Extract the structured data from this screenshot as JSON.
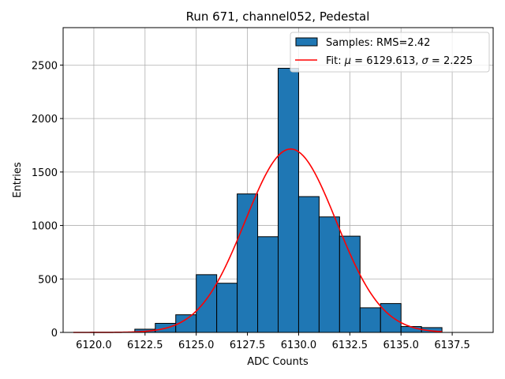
{
  "chart_data": {
    "type": "bar",
    "title": "Run 671, channel052, Pedestal",
    "xlabel": "ADC Counts",
    "ylabel": "Entries",
    "xlim": [
      6118.5,
      6139.5
    ],
    "ylim": [
      0,
      2850
    ],
    "xticks": [
      6120.0,
      6122.5,
      6125.0,
      6127.5,
      6130.0,
      6132.5,
      6135.0,
      6137.5
    ],
    "xtick_labels": [
      "6120.0",
      "6122.5",
      "6125.0",
      "6127.5",
      "6130.0",
      "6132.5",
      "6135.0",
      "6137.5"
    ],
    "yticks": [
      0,
      500,
      1000,
      1500,
      2000,
      2500
    ],
    "ytick_labels": [
      "0",
      "500",
      "1000",
      "1500",
      "2000",
      "2500"
    ],
    "grid": true,
    "legend_position": "top-right",
    "bar_color": "#1f77b4",
    "fit_color": "#ff0000",
    "histogram": {
      "name": "Samples: RMS=2.42",
      "bin_width": 1,
      "bin_left_edges": [
        6122,
        6123,
        6124,
        6125,
        6126,
        6127,
        6128,
        6129,
        6130,
        6131,
        6132,
        6133,
        6134,
        6135,
        6136
      ],
      "values": [
        30,
        85,
        165,
        540,
        460,
        1295,
        895,
        2470,
        1270,
        1080,
        900,
        230,
        270,
        55,
        45
      ]
    },
    "fit": {
      "name_prefix": "Fit: ",
      "mu_symbol": "μ",
      "sigma_symbol": "σ",
      "mu": 6129.613,
      "sigma": 2.225,
      "mu_text": "6129.613",
      "sigma_text": "2.225",
      "amplitude": 1715,
      "x_range": [
        6119,
        6137
      ]
    }
  }
}
